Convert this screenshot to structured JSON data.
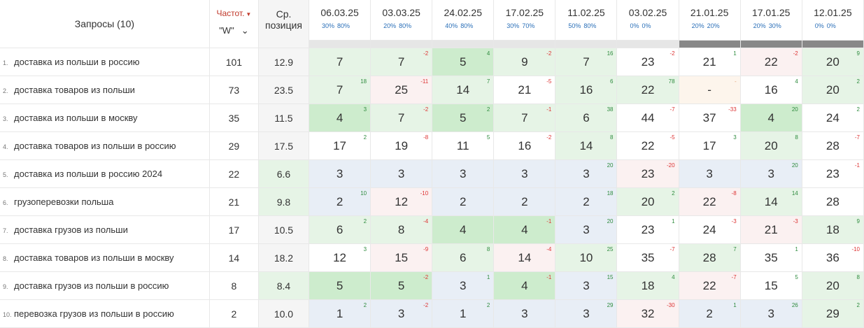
{
  "header": {
    "queries_label": "Запросы (10)",
    "freq_label": "Частот.",
    "freq_select_value": "\"W\"",
    "pos_label_line1": "Ср.",
    "pos_label_line2": "позиция"
  },
  "dates": [
    {
      "date": "06.03.25",
      "p1": "30%",
      "p2": "80%"
    },
    {
      "date": "03.03.25",
      "p1": "20%",
      "p2": "80%"
    },
    {
      "date": "24.02.25",
      "p1": "40%",
      "p2": "80%"
    },
    {
      "date": "17.02.25",
      "p1": "30%",
      "p2": "70%"
    },
    {
      "date": "11.02.25",
      "p1": "50%",
      "p2": "80%"
    },
    {
      "date": "03.02.25",
      "p1": "0%",
      "p2": "0%"
    },
    {
      "date": "21.01.25",
      "p1": "20%",
      "p2": "20%"
    },
    {
      "date": "17.01.25",
      "p1": "20%",
      "p2": "30%"
    },
    {
      "date": "12.01.25",
      "p1": "0%",
      "p2": "0%"
    }
  ],
  "colors": {
    "green_strong": "#cdeccd",
    "green_light": "#e6f4e6",
    "blue_light": "#e8eef6",
    "pink_light": "#fbf1f1",
    "orange_light": "#fdf5ec",
    "white": "#ffffff"
  },
  "rows": [
    {
      "n": "1.",
      "q": "доставка из польши в россию",
      "freq": "101",
      "pos": "12.9",
      "pos_bg": "n",
      "cells": [
        [
          "7",
          "",
          "gl",
          ""
        ],
        [
          "7",
          "-2",
          "gl",
          "dn"
        ],
        [
          "5",
          "4",
          "gs",
          "up"
        ],
        [
          "9",
          "-2",
          "gl",
          "dn"
        ],
        [
          "7",
          "16",
          "gl",
          "up"
        ],
        [
          "23",
          "-2",
          "w",
          "dn"
        ],
        [
          "21",
          "1",
          "w",
          "up"
        ],
        [
          "22",
          "-2",
          "pk",
          "dn"
        ],
        [
          "20",
          "9",
          "gl",
          "up"
        ]
      ]
    },
    {
      "n": "2.",
      "q": "доставка товаров из польши",
      "freq": "73",
      "pos": "23.5",
      "pos_bg": "n",
      "cells": [
        [
          "7",
          "18",
          "gl",
          "up"
        ],
        [
          "25",
          "-11",
          "pk",
          "dn"
        ],
        [
          "14",
          "7",
          "gl",
          "up"
        ],
        [
          "21",
          "-5",
          "w",
          "dn"
        ],
        [
          "16",
          "6",
          "gl",
          "up"
        ],
        [
          "22",
          "78",
          "gl",
          "up"
        ],
        [
          "-",
          "-",
          "or",
          "zz"
        ],
        [
          "16",
          "4",
          "w",
          "up"
        ],
        [
          "20",
          "2",
          "gl",
          "up"
        ]
      ]
    },
    {
      "n": "3.",
      "q": "доставка из польши в москву",
      "freq": "35",
      "pos": "11.5",
      "pos_bg": "n",
      "cells": [
        [
          "4",
          "3",
          "gs",
          "up"
        ],
        [
          "7",
          "-2",
          "gl",
          "dn"
        ],
        [
          "5",
          "2",
          "gs",
          "up"
        ],
        [
          "7",
          "-1",
          "gl",
          "dn"
        ],
        [
          "6",
          "38",
          "gl",
          "up"
        ],
        [
          "44",
          "-7",
          "w",
          "dn"
        ],
        [
          "37",
          "-33",
          "w",
          "dn"
        ],
        [
          "4",
          "20",
          "gs",
          "up"
        ],
        [
          "24",
          "2",
          "w",
          "up"
        ]
      ]
    },
    {
      "n": "4.",
      "q": "доставка товаров из польши в россию",
      "freq": "29",
      "pos": "17.5",
      "pos_bg": "n",
      "cells": [
        [
          "17",
          "2",
          "w",
          "up"
        ],
        [
          "19",
          "-8",
          "w",
          "dn"
        ],
        [
          "11",
          "5",
          "w",
          "up"
        ],
        [
          "16",
          "-2",
          "w",
          "dn"
        ],
        [
          "14",
          "8",
          "gl",
          "up"
        ],
        [
          "22",
          "-5",
          "w",
          "dn"
        ],
        [
          "17",
          "3",
          "w",
          "up"
        ],
        [
          "20",
          "8",
          "gl",
          "up"
        ],
        [
          "28",
          "-7",
          "w",
          "dn"
        ]
      ]
    },
    {
      "n": "5.",
      "q": "доставка из польши в россию 2024",
      "freq": "22",
      "pos": "6.6",
      "pos_bg": "g",
      "cells": [
        [
          "3",
          "",
          "bl",
          ""
        ],
        [
          "3",
          "",
          "bl",
          ""
        ],
        [
          "3",
          "",
          "bl",
          ""
        ],
        [
          "3",
          "",
          "bl",
          ""
        ],
        [
          "3",
          "20",
          "bl",
          "up"
        ],
        [
          "23",
          "-20",
          "pk",
          "dn"
        ],
        [
          "3",
          "",
          "bl",
          ""
        ],
        [
          "3",
          "20",
          "bl",
          "up"
        ],
        [
          "23",
          "-1",
          "w",
          "dn"
        ]
      ]
    },
    {
      "n": "6.",
      "q": "грузоперевозки польша",
      "freq": "21",
      "pos": "9.8",
      "pos_bg": "g",
      "cells": [
        [
          "2",
          "10",
          "bl",
          "up"
        ],
        [
          "12",
          "-10",
          "pk",
          "dn"
        ],
        [
          "2",
          "",
          "bl",
          ""
        ],
        [
          "2",
          "",
          "bl",
          ""
        ],
        [
          "2",
          "18",
          "bl",
          "up"
        ],
        [
          "20",
          "2",
          "gl",
          "up"
        ],
        [
          "22",
          "-8",
          "pk",
          "dn"
        ],
        [
          "14",
          "14",
          "gl",
          "up"
        ],
        [
          "28",
          "",
          "w",
          ""
        ]
      ]
    },
    {
      "n": "7.",
      "q": "доставка грузов из польши",
      "freq": "17",
      "pos": "10.5",
      "pos_bg": "n",
      "cells": [
        [
          "6",
          "2",
          "gl",
          "up"
        ],
        [
          "8",
          "-4",
          "gl",
          "dn"
        ],
        [
          "4",
          "",
          "gs",
          ""
        ],
        [
          "4",
          "-1",
          "gs",
          "dn"
        ],
        [
          "3",
          "20",
          "bl",
          "up"
        ],
        [
          "23",
          "1",
          "w",
          "up"
        ],
        [
          "24",
          "-3",
          "w",
          "dn"
        ],
        [
          "21",
          "-3",
          "pk",
          "dn"
        ],
        [
          "18",
          "9",
          "gl",
          "up"
        ]
      ]
    },
    {
      "n": "8.",
      "q": "доставка товаров из польши в москву",
      "freq": "14",
      "pos": "18.2",
      "pos_bg": "n",
      "cells": [
        [
          "12",
          "3",
          "w",
          "up"
        ],
        [
          "15",
          "-9",
          "pk",
          "dn"
        ],
        [
          "6",
          "8",
          "gl",
          "up"
        ],
        [
          "14",
          "-4",
          "pk",
          "dn"
        ],
        [
          "10",
          "25",
          "gl",
          "up"
        ],
        [
          "35",
          "-7",
          "w",
          "dn"
        ],
        [
          "28",
          "7",
          "gl",
          "up"
        ],
        [
          "35",
          "1",
          "w",
          "up"
        ],
        [
          "36",
          "-10",
          "w",
          "dn"
        ]
      ]
    },
    {
      "n": "9.",
      "q": "доставка грузов из польши в россию",
      "freq": "8",
      "pos": "8.4",
      "pos_bg": "g",
      "cells": [
        [
          "5",
          "",
          "gs",
          ""
        ],
        [
          "5",
          "-2",
          "gs",
          "dn"
        ],
        [
          "3",
          "1",
          "bl",
          "up"
        ],
        [
          "4",
          "-1",
          "gs",
          "dn"
        ],
        [
          "3",
          "15",
          "bl",
          "up"
        ],
        [
          "18",
          "4",
          "gl",
          "up"
        ],
        [
          "22",
          "-7",
          "pk",
          "dn"
        ],
        [
          "15",
          "5",
          "w",
          "up"
        ],
        [
          "20",
          "8",
          "gl",
          "up"
        ]
      ]
    },
    {
      "n": "10.",
      "q": "перевозка грузов из польши в россию",
      "freq": "2",
      "pos": "10.0",
      "pos_bg": "n",
      "cells": [
        [
          "1",
          "2",
          "bl",
          "up"
        ],
        [
          "3",
          "-2",
          "bl",
          "dn"
        ],
        [
          "1",
          "2",
          "bl",
          "up"
        ],
        [
          "3",
          "",
          "bl",
          ""
        ],
        [
          "3",
          "29",
          "bl",
          "up"
        ],
        [
          "32",
          "-30",
          "pk",
          "dn"
        ],
        [
          "2",
          "1",
          "bl",
          "up"
        ],
        [
          "3",
          "26",
          "bl",
          "up"
        ],
        [
          "29",
          "2",
          "gl",
          "up"
        ]
      ]
    }
  ]
}
